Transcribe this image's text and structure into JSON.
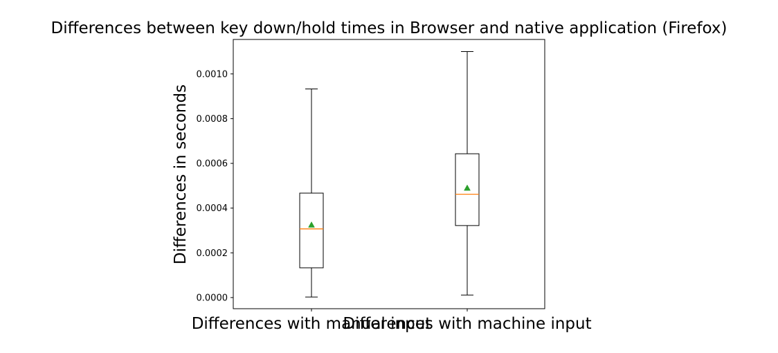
{
  "chart_data": {
    "type": "box",
    "title": "Differences between key down/hold times in Browser and native application (Firefox)",
    "ylabel": "Differences in seconds",
    "xlabel": "",
    "categories": [
      "Differences with manual input",
      "Differences with machine input"
    ],
    "boxes": [
      {
        "name": "Differences with manual input",
        "whisker_low": 2.5e-06,
        "q1": 0.000133,
        "median": 0.000307,
        "q3": 0.000467,
        "whisker_high": 0.000933,
        "mean": 0.000325
      },
      {
        "name": "Differences with machine input",
        "whisker_low": 1.15e-05,
        "q1": 0.000322,
        "median": 0.000462,
        "q3": 0.000643,
        "whisker_high": 0.0011,
        "mean": 0.00049
      }
    ],
    "ylim": [
      -4.98e-05,
      0.0011541
    ],
    "yticks": [
      {
        "value": 0,
        "label": "0.0000"
      },
      {
        "value": 0.0002,
        "label": "0.0002"
      },
      {
        "value": 0.0004,
        "label": "0.0004"
      },
      {
        "value": 0.0006,
        "label": "0.0006"
      },
      {
        "value": 0.0008,
        "label": "0.0008"
      },
      {
        "value": 0.001,
        "label": "0.0010"
      }
    ],
    "grid": false,
    "colors": {
      "box": "#000000",
      "median": "#ff7f0e",
      "mean": "#2ca02c"
    }
  }
}
